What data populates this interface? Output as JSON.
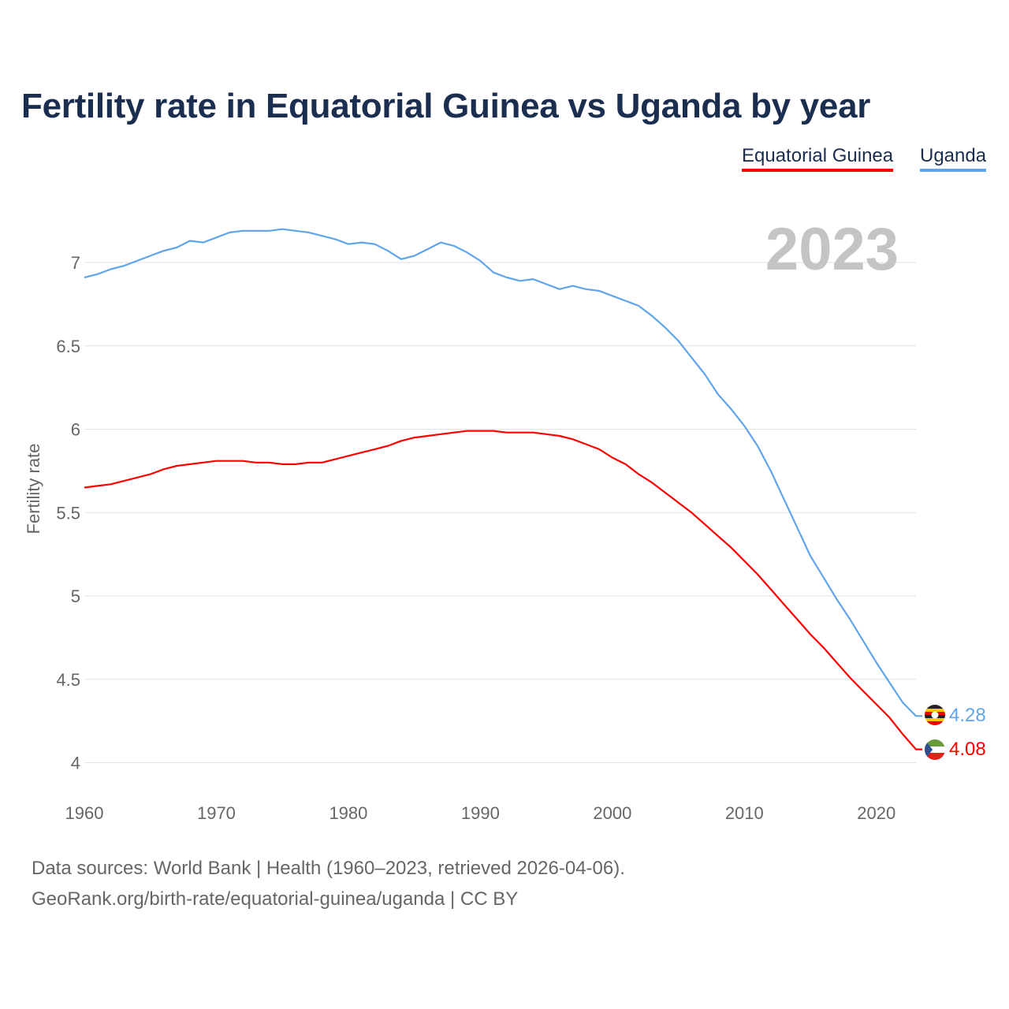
{
  "title": "Fertility rate in Equatorial Guinea vs Uganda by year",
  "footer": {
    "line1": "Data sources: World Bank | Health (1960–2023, retrieved 2026-04-06).",
    "line2": "GeoRank.org/birth-rate/equatorial-guinea/uganda | CC BY"
  },
  "chart_data": {
    "type": "line",
    "title": "Fertility rate in Equatorial Guinea vs Uganda by year",
    "xlabel": "",
    "ylabel": "Fertility rate",
    "year_label": "2023",
    "xlim": [
      1960,
      2023
    ],
    "ylim": [
      3.85,
      7.3
    ],
    "xticks": [
      "1960",
      "1970",
      "1980",
      "1990",
      "2000",
      "2010",
      "2020"
    ],
    "yticks": [
      "4",
      "4.5",
      "5",
      "5.5",
      "6",
      "6.5",
      "7"
    ],
    "grid": true,
    "legend_position": "top-right",
    "x": [
      1960,
      1961,
      1962,
      1963,
      1964,
      1965,
      1966,
      1967,
      1968,
      1969,
      1970,
      1971,
      1972,
      1973,
      1974,
      1975,
      1976,
      1977,
      1978,
      1979,
      1980,
      1981,
      1982,
      1983,
      1984,
      1985,
      1986,
      1987,
      1988,
      1989,
      1990,
      1991,
      1992,
      1993,
      1994,
      1995,
      1996,
      1997,
      1998,
      1999,
      2000,
      2001,
      2002,
      2003,
      2004,
      2005,
      2006,
      2007,
      2008,
      2009,
      2010,
      2011,
      2012,
      2013,
      2014,
      2015,
      2016,
      2017,
      2018,
      2019,
      2020,
      2021,
      2022,
      2023
    ],
    "series": [
      {
        "name": "Equatorial Guinea",
        "color": "#ff0000",
        "end_label": "4.08",
        "values": [
          5.65,
          5.66,
          5.67,
          5.69,
          5.71,
          5.73,
          5.76,
          5.78,
          5.79,
          5.8,
          5.81,
          5.81,
          5.81,
          5.8,
          5.8,
          5.79,
          5.79,
          5.8,
          5.8,
          5.82,
          5.84,
          5.86,
          5.88,
          5.9,
          5.93,
          5.95,
          5.96,
          5.97,
          5.98,
          5.99,
          5.99,
          5.99,
          5.98,
          5.98,
          5.98,
          5.97,
          5.96,
          5.94,
          5.91,
          5.88,
          5.83,
          5.79,
          5.73,
          5.68,
          5.62,
          5.56,
          5.5,
          5.43,
          5.36,
          5.29,
          5.21,
          5.13,
          5.04,
          4.95,
          4.86,
          4.77,
          4.69,
          4.6,
          4.51,
          4.43,
          4.35,
          4.27,
          4.17,
          4.08
        ]
      },
      {
        "name": "Uganda",
        "color": "#60a5ea",
        "end_label": "4.28",
        "values": [
          6.91,
          6.93,
          6.96,
          6.98,
          7.01,
          7.04,
          7.07,
          7.09,
          7.13,
          7.12,
          7.15,
          7.18,
          7.19,
          7.19,
          7.19,
          7.2,
          7.19,
          7.18,
          7.16,
          7.14,
          7.11,
          7.12,
          7.11,
          7.07,
          7.02,
          7.04,
          7.08,
          7.12,
          7.1,
          7.06,
          7.01,
          6.94,
          6.91,
          6.89,
          6.9,
          6.87,
          6.84,
          6.86,
          6.84,
          6.83,
          6.8,
          6.77,
          6.74,
          6.68,
          6.61,
          6.53,
          6.43,
          6.33,
          6.21,
          6.12,
          6.02,
          5.9,
          5.75,
          5.58,
          5.41,
          5.24,
          5.11,
          4.98,
          4.86,
          4.73,
          4.6,
          4.48,
          4.36,
          4.28
        ]
      }
    ]
  }
}
